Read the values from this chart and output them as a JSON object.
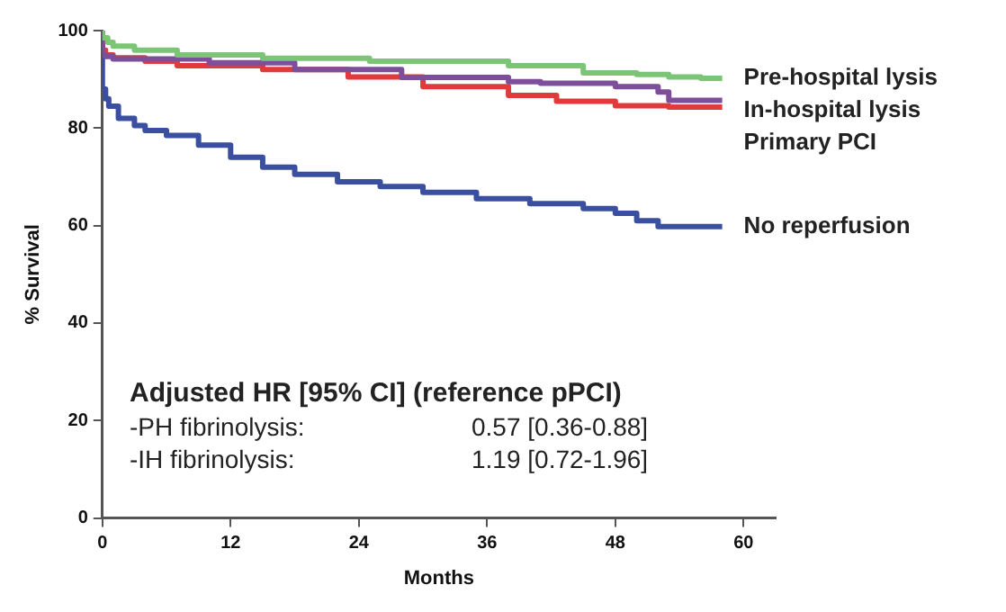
{
  "chart_data": {
    "type": "step",
    "xlabel": "Months",
    "ylabel": "% Survival",
    "xlim": [
      0,
      63
    ],
    "xticks": [
      0,
      12,
      24,
      36,
      48,
      60
    ],
    "ylim": [
      0,
      100
    ],
    "yticks": [
      0,
      20,
      40,
      60,
      80,
      100
    ],
    "grid": false,
    "legend": false,
    "marker": "none",
    "line_style": "solid",
    "annotations": [
      "Adjusted HR [95% CI] (reference pPCI)",
      "-PH fibrinolysis:",
      "0.57 [0.36-0.88]",
      "-IH fibrinolysis:",
      "1.19 [0.72-1.96]"
    ],
    "series": [
      {
        "name": "Pre-hospital lysis",
        "color": "#7cc576",
        "x": [
          0,
          0.5,
          1,
          3,
          7,
          15,
          25,
          38,
          45,
          50,
          53,
          56,
          58
        ],
        "values": [
          100,
          98.5,
          97.6,
          96.8,
          96,
          95,
          94.3,
          93.7,
          92.8,
          91.3,
          91,
          90.5,
          90.2
        ]
      },
      {
        "name": "In-hospital lysis",
        "color": "#7d4e9a",
        "x": [
          0,
          0.3,
          1,
          10,
          18,
          28,
          38,
          41,
          48,
          52,
          53,
          54,
          58
        ],
        "values": [
          100,
          95,
          94.7,
          94.2,
          93.4,
          92,
          90.4,
          89.5,
          89.2,
          88.5,
          87.4,
          85.7,
          85.7
        ]
      },
      {
        "name": "Primary PCI",
        "color": "#e03a3a",
        "x": [
          0,
          0.3,
          1,
          4,
          7,
          15,
          23,
          30,
          38,
          42.5,
          48,
          53,
          58
        ],
        "values": [
          100,
          96,
          95,
          94.4,
          93.7,
          92.8,
          92,
          90.5,
          88.5,
          86.7,
          85.5,
          84.6,
          84.3
        ]
      },
      {
        "name": "No reperfusion",
        "color": "#3a4fa0",
        "x": [
          0,
          0.3,
          0.6,
          1.5,
          3,
          4,
          6,
          9,
          12,
          15,
          18,
          22,
          26,
          30,
          35,
          40,
          45,
          48,
          50,
          52,
          54,
          58
        ],
        "values": [
          100,
          88,
          86,
          84.5,
          82,
          80.5,
          79.5,
          78.5,
          76.5,
          74,
          72,
          70.5,
          69,
          68,
          66.8,
          65.5,
          64.5,
          63.5,
          62.5,
          61,
          59.8,
          59.8
        ]
      }
    ]
  }
}
